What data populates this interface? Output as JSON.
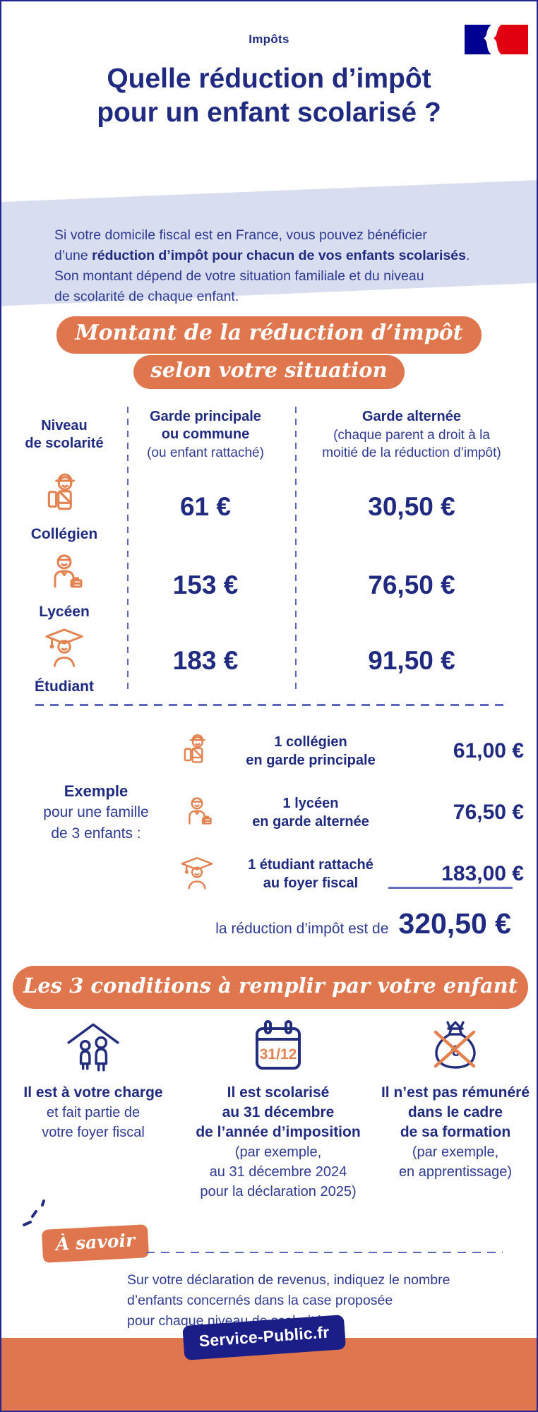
{
  "header": {
    "category_label": "Impôts",
    "title": "Quelle réduction d’impôt\npour un enfant scolarisé ?",
    "flag_icon": "french-republic-flag-icon"
  },
  "intro": {
    "before": "Si votre domicile fiscal est en France, vous pouvez bénéficier\nd’une ",
    "bold": "réduction d’impôt pour chacun de vos enfants scolarisés",
    "after": ".\nSon montant dépend de votre situation familiale et du niveau\nde scolarité de chaque enfant."
  },
  "amounts": {
    "banner_line1": "Montant de la réduction d’impôt",
    "banner_line2": "selon votre situation",
    "col_level_header": "Niveau\nde scolarité",
    "col_main_header": "Garde principale\nou commune",
    "col_main_note": "(ou enfant rattaché)",
    "col_alt_header": "Garde alternée",
    "col_alt_note": "(chaque parent a droit à la\nmoitié de la réduction d’impôt)",
    "rows": [
      {
        "icon": "collegien-icon",
        "label": "Collégien",
        "main": "61 €",
        "alt": "30,50 €"
      },
      {
        "icon": "lyceen-icon",
        "label": "Lycéen",
        "main": "153 €",
        "alt": "76,50 €"
      },
      {
        "icon": "etudiant-icon",
        "label": "Étudiant",
        "main": "183 €",
        "alt": "91,50 €"
      }
    ]
  },
  "example": {
    "label_bold": "Exemple",
    "label_rest": "pour une famille\nde 3 enfants :",
    "rows": [
      {
        "icon": "collegien-icon",
        "label": "1 collégien\nen garde principale",
        "value": "61,00 €"
      },
      {
        "icon": "lyceen-icon",
        "label": "1 lycéen\nen garde alternée",
        "value": "76,50 €"
      },
      {
        "icon": "etudiant-icon",
        "label": "1 étudiant rattaché\nau foyer fiscal",
        "value": "183,00 €"
      }
    ],
    "total_label": "la réduction d’impôt est de",
    "total_value": "320,50 €"
  },
  "conditions": {
    "banner": "Les 3 conditions à remplir par votre enfant",
    "items": [
      {
        "icon": "family-under-roof-icon",
        "bold": "Il est à votre charge",
        "note": "et fait partie de\nvotre foyer fiscal"
      },
      {
        "icon": "calendar-icon",
        "calendar_date": "31/12",
        "bold": "Il est scolarisé\nau 31 décembre\nde l’année d’imposition",
        "note": "(par exemple,\nau 31 décembre 2024\npour la déclaration 2025)"
      },
      {
        "icon": "crossed-money-bag-icon",
        "bold": "Il n’est pas rémunéré\ndans le cadre\nde sa formation",
        "note": "(par exemple,\nen apprentissage)"
      }
    ]
  },
  "note": {
    "tag": "À savoir",
    "text": "Sur votre déclaration de revenus, indiquez le nombre\nd’enfants concernés dans la case proposée\npour chaque niveau de scolarité."
  },
  "footer": {
    "brand": "Service-Public.fr"
  },
  "colors": {
    "navy": "#1f2a80",
    "body_blue": "#2e3a93",
    "orange": "#df764e",
    "light_band": "#d8ddef",
    "dash_blue": "#5b66bd",
    "icon_orange": "#e3814f",
    "flag_blue": "#000091",
    "flag_red": "#e1000f"
  }
}
